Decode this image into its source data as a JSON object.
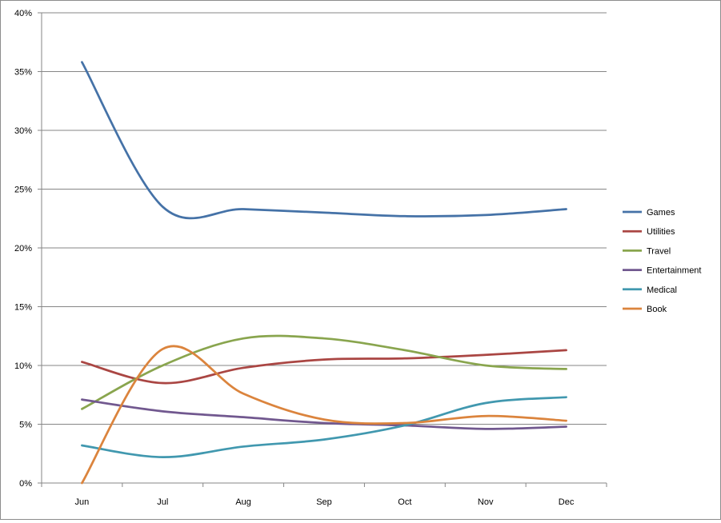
{
  "chart_data": {
    "type": "line",
    "categories": [
      "Jun",
      "Jul",
      "Aug",
      "Sep",
      "Oct",
      "Nov",
      "Dec"
    ],
    "ylim": [
      0,
      40
    ],
    "yticks": [
      0,
      5,
      10,
      15,
      20,
      25,
      30,
      35,
      40
    ],
    "ytick_labels": [
      "0%",
      "5%",
      "10%",
      "15%",
      "20%",
      "25%",
      "30%",
      "35%",
      "40%"
    ],
    "grid": true,
    "legend_position": "right",
    "series": [
      {
        "name": "Games",
        "color": "#4572a7",
        "values": [
          35.8,
          23.5,
          23.3,
          23.0,
          22.7,
          22.8,
          23.3
        ]
      },
      {
        "name": "Utilities",
        "color": "#aa4643",
        "values": [
          10.3,
          8.5,
          9.8,
          10.5,
          10.6,
          10.9,
          11.3
        ]
      },
      {
        "name": "Travel",
        "color": "#89a54e",
        "values": [
          6.3,
          10.0,
          12.3,
          12.3,
          11.3,
          10.0,
          9.7
        ]
      },
      {
        "name": "Entertainment",
        "color": "#71588f",
        "values": [
          7.1,
          6.1,
          5.6,
          5.1,
          4.9,
          4.6,
          4.8
        ]
      },
      {
        "name": "Medical",
        "color": "#4198af",
        "values": [
          3.2,
          2.2,
          3.1,
          3.7,
          4.9,
          6.8,
          7.3
        ]
      },
      {
        "name": "Book",
        "color": "#db843d",
        "values": [
          0.0,
          11.4,
          7.6,
          5.4,
          5.1,
          5.7,
          5.3
        ]
      }
    ]
  }
}
